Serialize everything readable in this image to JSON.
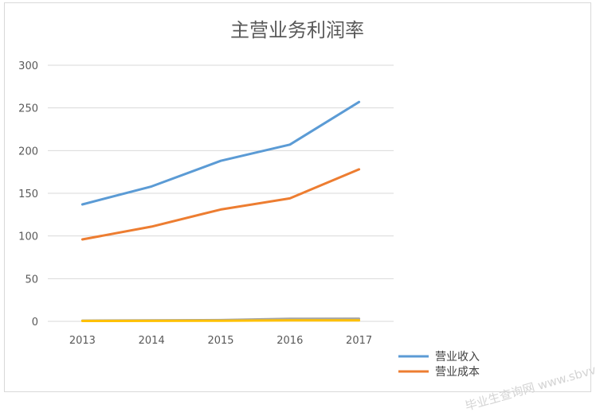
{
  "chart_data": {
    "type": "line",
    "title": "主营业务利润率",
    "categories": [
      "2013",
      "2014",
      "2015",
      "2016",
      "2017"
    ],
    "ylim": [
      0,
      300
    ],
    "yticks": [
      0,
      50,
      100,
      150,
      200,
      250,
      300
    ],
    "grid": true,
    "legend_position": "bottom-right",
    "series": [
      {
        "name": "营业收入",
        "color": "#5b9bd5",
        "values": [
          137,
          158,
          188,
          207,
          257
        ],
        "in_legend": true
      },
      {
        "name": "营业成本",
        "color": "#ed7d31",
        "values": [
          96,
          111,
          131,
          144,
          178
        ],
        "in_legend": true
      },
      {
        "name": "",
        "color": "#a5a5a5",
        "values": [
          0.8,
          1.2,
          1.5,
          3,
          3.2
        ],
        "in_legend": false
      },
      {
        "name": "",
        "color": "#ffc000",
        "values": [
          0.5,
          0.6,
          0.7,
          1.2,
          1.1
        ],
        "in_legend": false
      }
    ]
  },
  "watermark": "毕业生查询网 www.sbvv.com"
}
